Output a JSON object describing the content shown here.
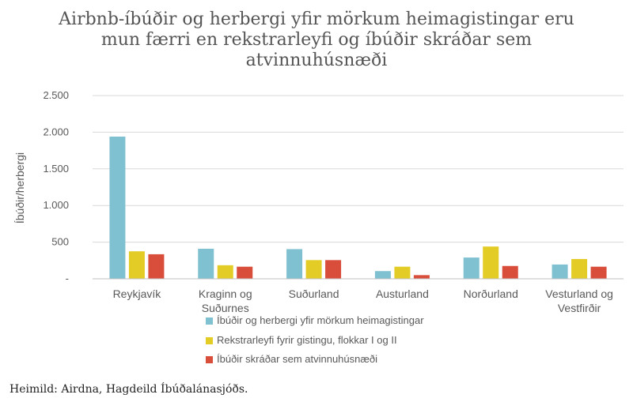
{
  "chart_data": {
    "type": "bar",
    "title_lines": [
      "Airbnb-íbúðir og herbergi yfir mörkum heimagistingar eru",
      "mun færri en rekstrarleyfi og íbúðir skráðar sem",
      "atvinnuhúsnæði"
    ],
    "ylabel": "Íbúðir/herbergi",
    "ylim": [
      0,
      2500
    ],
    "yticks": [
      0,
      500,
      1000,
      1500,
      2000,
      2500
    ],
    "ytick_labels": [
      "-",
      "500",
      "1.000",
      "1.500",
      "2.000",
      "2.500"
    ],
    "grid": true,
    "legend_position": "bottom",
    "categories": [
      [
        "Reykjavík"
      ],
      [
        "Kraginn og",
        "Suðurnes"
      ],
      [
        "Suðurland"
      ],
      [
        "Austurland"
      ],
      [
        "Norðurland"
      ],
      [
        "Vesturland og",
        "Vestfirðir"
      ]
    ],
    "series": [
      {
        "name": "Íbúðir og herbergi yfir mörkum heimagistingar",
        "color": "#7fc0d1",
        "values": [
          1940,
          410,
          405,
          105,
          290,
          195
        ]
      },
      {
        "name": "Rekstrarleyfi fyrir gistingu, flokkar I og II",
        "color": "#e3cc25",
        "values": [
          375,
          185,
          255,
          165,
          440,
          270
        ]
      },
      {
        "name": "Íbúðir skráðar sem atvinnuhúsnæði",
        "color": "#d94d3b",
        "values": [
          335,
          165,
          255,
          50,
          175,
          165
        ]
      }
    ]
  },
  "source": "Heimild: Airdna, Hagdeild Íbúðalánasjóðs."
}
